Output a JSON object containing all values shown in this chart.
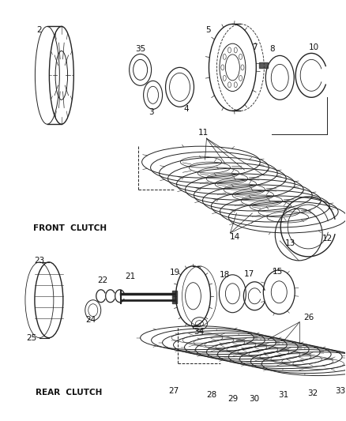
{
  "bg_color": "#ffffff",
  "line_color": "#222222",
  "text_color": "#111111",
  "front_clutch_label": "FRONT  CLUTCH",
  "rear_clutch_label": "REAR  CLUTCH",
  "figsize": [
    4.38,
    5.33
  ],
  "dpi": 100
}
